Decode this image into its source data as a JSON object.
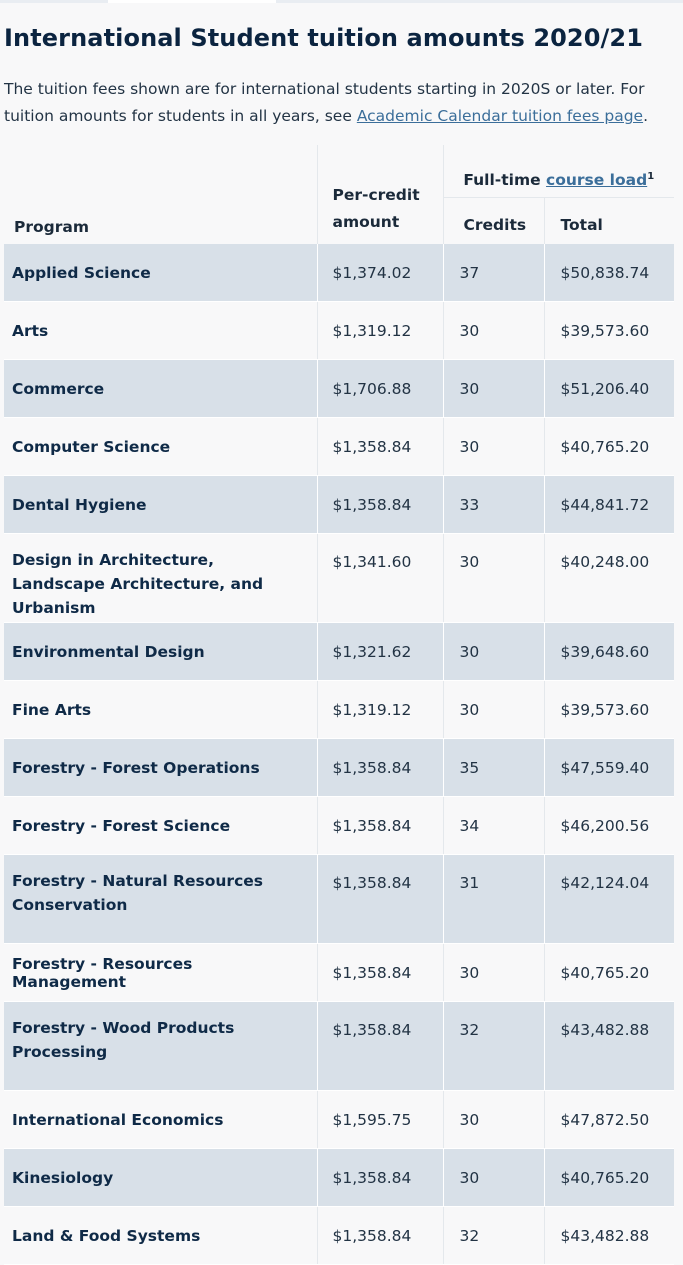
{
  "page": {
    "title": "International Student tuition amounts 2020/21",
    "intro_text": "The tuition fees shown are for international students starting in 2020S or later. For tuition amounts for students in all years, see ",
    "intro_link": "Academic Calendar tuition fees page",
    "intro_end": "."
  },
  "table": {
    "headers": {
      "program": "Program",
      "per_credit": "Per-credit amount",
      "full_time_prefix": "Full-time ",
      "full_time_link": "course load",
      "full_time_sup": "1",
      "credits": "Credits",
      "total": "Total"
    },
    "rows": [
      {
        "program": "Applied Science",
        "per_credit": "$1,374.02",
        "credits": "37",
        "total": "$50,838.74"
      },
      {
        "program": "Arts",
        "per_credit": "$1,319.12",
        "credits": "30",
        "total": "$39,573.60"
      },
      {
        "program": "Commerce",
        "per_credit": "$1,706.88",
        "credits": "30",
        "total": "$51,206.40"
      },
      {
        "program": "Computer Science",
        "per_credit": "$1,358.84",
        "credits": "30",
        "total": "$40,765.20"
      },
      {
        "program": "Dental Hygiene",
        "per_credit": "$1,358.84",
        "credits": "33",
        "total": "$44,841.72"
      },
      {
        "program": "Design in Architecture, Landscape Architecture, and Urbanism",
        "per_credit": "$1,341.60",
        "credits": "30",
        "total": "$40,248.00"
      },
      {
        "program": "Environmental Design",
        "per_credit": "$1,321.62",
        "credits": "30",
        "total": "$39,648.60"
      },
      {
        "program": "Fine Arts",
        "per_credit": "$1,319.12",
        "credits": "30",
        "total": "$39,573.60"
      },
      {
        "program": "Forestry - Forest Operations",
        "per_credit": "$1,358.84",
        "credits": "35",
        "total": "$47,559.40"
      },
      {
        "program": "Forestry - Forest Science",
        "per_credit": "$1,358.84",
        "credits": "34",
        "total": "$46,200.56"
      },
      {
        "program": "Forestry - Natural Resources Conservation",
        "per_credit": "$1,358.84",
        "credits": "31",
        "total": "$42,124.04"
      },
      {
        "program": "Forestry - Resources Management",
        "per_credit": "$1,358.84",
        "credits": "30",
        "total": "$40,765.20"
      },
      {
        "program": "Forestry - Wood Products Processing",
        "per_credit": "$1,358.84",
        "credits": "32",
        "total": "$43,482.88"
      },
      {
        "program": "International Economics",
        "per_credit": "$1,595.75",
        "credits": "30",
        "total": "$47,872.50"
      },
      {
        "program": "Kinesiology",
        "per_credit": "$1,358.84",
        "credits": "30",
        "total": "$40,765.20"
      },
      {
        "program": "Land & Food Systems",
        "per_credit": "$1,358.84",
        "credits": "32",
        "total": "$43,482.88"
      }
    ]
  }
}
